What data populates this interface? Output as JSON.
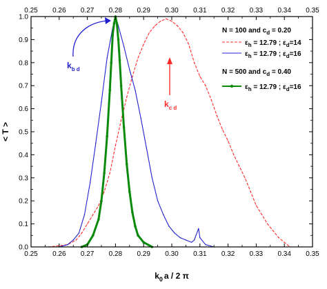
{
  "chart_data": {
    "type": "line",
    "title": "",
    "xlabel": {
      "main": "k",
      "sub": "0",
      "rest": "a / 2 π"
    },
    "ylabel": "< T >",
    "xlim": [
      0.25,
      0.35
    ],
    "ylim": [
      0.0,
      1.0
    ],
    "x_ticks": [
      "0.25",
      "0.26",
      "0.27",
      "0.28",
      "0.29",
      "0.30",
      "0.31",
      "0.32",
      "0.33",
      "0.34",
      "0.35"
    ],
    "y_ticks": [
      "0.0",
      "0.1",
      "0.2",
      "0.3",
      "0.4",
      "0.5",
      "0.6",
      "0.7",
      "0.8",
      "0.9",
      "1.0"
    ],
    "top_axis_ticks": true,
    "grid": false,
    "legend_position": "top-right",
    "colors": {
      "red": "#ff2a2a",
      "blue": "#2020d0",
      "green": "#0a8a0a",
      "axis": "#000000"
    },
    "legend": {
      "group1_title": "N = 100 and c",
      "group1_title_sub": "d",
      "group1_title_tail": " = 0.20",
      "group2_title": "N = 500 and c",
      "group2_title_sub": "d",
      "group2_title_tail": " = 0.40",
      "entry_label": {
        "eps": "ε",
        "h": "h",
        "mid": " = 12.79 ; ε",
        "d": "d"
      }
    },
    "series": [
      {
        "color": "red",
        "style": "dashed",
        "eps_d": "14",
        "points": [
          [
            0.256,
            0.0
          ],
          [
            0.26,
            0.005
          ],
          [
            0.263,
            0.01
          ],
          [
            0.266,
            0.03
          ],
          [
            0.268,
            0.06
          ],
          [
            0.27,
            0.1
          ],
          [
            0.272,
            0.14
          ],
          [
            0.274,
            0.18
          ],
          [
            0.276,
            0.24
          ],
          [
            0.278,
            0.32
          ],
          [
            0.28,
            0.44
          ],
          [
            0.282,
            0.55
          ],
          [
            0.284,
            0.65
          ],
          [
            0.286,
            0.74
          ],
          [
            0.288,
            0.82
          ],
          [
            0.29,
            0.88
          ],
          [
            0.292,
            0.93
          ],
          [
            0.294,
            0.96
          ],
          [
            0.296,
            0.98
          ],
          [
            0.298,
            0.99
          ],
          [
            0.3,
            0.98
          ],
          [
            0.302,
            0.96
          ],
          [
            0.304,
            0.93
          ],
          [
            0.306,
            0.88
          ],
          [
            0.308,
            0.8
          ],
          [
            0.31,
            0.74
          ],
          [
            0.312,
            0.7
          ],
          [
            0.314,
            0.64
          ],
          [
            0.316,
            0.57
          ],
          [
            0.318,
            0.51
          ],
          [
            0.32,
            0.46
          ],
          [
            0.322,
            0.4
          ],
          [
            0.324,
            0.35
          ],
          [
            0.326,
            0.3
          ],
          [
            0.328,
            0.24
          ],
          [
            0.33,
            0.18
          ],
          [
            0.332,
            0.14
          ],
          [
            0.334,
            0.1
          ],
          [
            0.336,
            0.07
          ],
          [
            0.338,
            0.04
          ],
          [
            0.34,
            0.02
          ],
          [
            0.342,
            0.0
          ]
        ]
      },
      {
        "color": "blue",
        "style": "solid",
        "eps_d": "16",
        "points": [
          [
            0.26,
            0.0
          ],
          [
            0.263,
            0.01
          ],
          [
            0.265,
            0.03
          ],
          [
            0.267,
            0.06
          ],
          [
            0.269,
            0.14
          ],
          [
            0.271,
            0.28
          ],
          [
            0.273,
            0.45
          ],
          [
            0.275,
            0.63
          ],
          [
            0.277,
            0.82
          ],
          [
            0.279,
            0.95
          ],
          [
            0.28,
            1.0
          ],
          [
            0.281,
            0.96
          ],
          [
            0.283,
            0.87
          ],
          [
            0.285,
            0.77
          ],
          [
            0.287,
            0.68
          ],
          [
            0.289,
            0.56
          ],
          [
            0.291,
            0.43
          ],
          [
            0.293,
            0.3
          ],
          [
            0.295,
            0.2
          ],
          [
            0.297,
            0.14
          ],
          [
            0.299,
            0.09
          ],
          [
            0.301,
            0.06
          ],
          [
            0.303,
            0.04
          ],
          [
            0.305,
            0.03
          ],
          [
            0.307,
            0.02
          ],
          [
            0.308,
            0.03
          ],
          [
            0.3095,
            0.08
          ],
          [
            0.31,
            0.04
          ],
          [
            0.312,
            0.01
          ],
          [
            0.315,
            0.0
          ]
        ]
      },
      {
        "color": "green",
        "style": "solid-markers",
        "eps_d": "16",
        "points": [
          [
            0.268,
            0.0
          ],
          [
            0.27,
            0.01
          ],
          [
            0.272,
            0.05
          ],
          [
            0.274,
            0.12
          ],
          [
            0.275,
            0.2
          ],
          [
            0.276,
            0.32
          ],
          [
            0.277,
            0.48
          ],
          [
            0.278,
            0.68
          ],
          [
            0.2785,
            0.8
          ],
          [
            0.279,
            0.92
          ],
          [
            0.2795,
            0.97
          ],
          [
            0.28,
            1.0
          ],
          [
            0.2805,
            0.97
          ],
          [
            0.281,
            0.9
          ],
          [
            0.2815,
            0.81
          ],
          [
            0.282,
            0.7
          ],
          [
            0.283,
            0.52
          ],
          [
            0.284,
            0.36
          ],
          [
            0.285,
            0.24
          ],
          [
            0.286,
            0.15
          ],
          [
            0.287,
            0.09
          ],
          [
            0.288,
            0.05
          ],
          [
            0.29,
            0.02
          ],
          [
            0.293,
            0.0
          ]
        ]
      }
    ],
    "annotations": [
      {
        "main": "k",
        "sub": "b d",
        "color": "blue"
      },
      {
        "main": "k",
        "sub": "c d",
        "color": "red"
      }
    ]
  }
}
